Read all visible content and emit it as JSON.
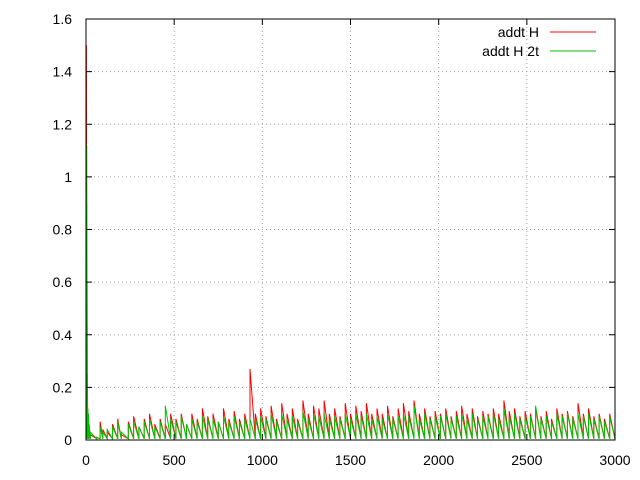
{
  "chart_data": {
    "type": "line",
    "title": "",
    "xlabel": "",
    "ylabel": "",
    "xlim": [
      0,
      3000
    ],
    "ylim": [
      0,
      1.6
    ],
    "grid": true,
    "legend_position": "top-right",
    "x_ticks": [
      0,
      500,
      1000,
      1500,
      2000,
      2500,
      3000
    ],
    "x_tick_labels": [
      "0",
      "500",
      "1000",
      "1500",
      "2000",
      "2500",
      "3000"
    ],
    "y_ticks": [
      0,
      0.2,
      0.4,
      0.6,
      0.8,
      1.0,
      1.2,
      1.4,
      1.6
    ],
    "y_tick_labels": [
      "0",
      "0.2",
      "0.4",
      "0.6",
      "0.8",
      "1",
      "1.2",
      "1.4",
      "1.6"
    ],
    "series": [
      {
        "name": "addt H",
        "color": "#ff0000",
        "points": [
          [
            0,
            0.02
          ],
          [
            2,
            1.5
          ],
          [
            4,
            1.12
          ],
          [
            6,
            0.6
          ],
          [
            8,
            0.25
          ],
          [
            10,
            0.12
          ],
          [
            14,
            0.07
          ],
          [
            18,
            0.04
          ],
          [
            25,
            0.02
          ],
          [
            60,
            0.01
          ],
          [
            80,
            0.07
          ],
          [
            95,
            0.04
          ],
          [
            120,
            0.03
          ],
          [
            150,
            0.06
          ],
          [
            180,
            0.08
          ],
          [
            200,
            0.02
          ],
          [
            240,
            0.07
          ],
          [
            270,
            0.09
          ],
          [
            300,
            0.05
          ],
          [
            330,
            0.08
          ],
          [
            360,
            0.1
          ],
          [
            390,
            0.06
          ],
          [
            420,
            0.08
          ],
          [
            450,
            0.06
          ],
          [
            480,
            0.1
          ],
          [
            510,
            0.08
          ],
          [
            540,
            0.1
          ],
          [
            570,
            0.06
          ],
          [
            600,
            0.1
          ],
          [
            630,
            0.08
          ],
          [
            660,
            0.12
          ],
          [
            690,
            0.09
          ],
          [
            720,
            0.1
          ],
          [
            750,
            0.07
          ],
          [
            780,
            0.12
          ],
          [
            810,
            0.08
          ],
          [
            840,
            0.11
          ],
          [
            870,
            0.08
          ],
          [
            900,
            0.1
          ],
          [
            930,
            0.27
          ],
          [
            960,
            0.1
          ],
          [
            990,
            0.12
          ],
          [
            1020,
            0.09
          ],
          [
            1050,
            0.13
          ],
          [
            1080,
            0.08
          ],
          [
            1110,
            0.14
          ],
          [
            1140,
            0.1
          ],
          [
            1170,
            0.12
          ],
          [
            1200,
            0.08
          ],
          [
            1230,
            0.15
          ],
          [
            1260,
            0.1
          ],
          [
            1290,
            0.13
          ],
          [
            1320,
            0.12
          ],
          [
            1350,
            0.15
          ],
          [
            1380,
            0.1
          ],
          [
            1410,
            0.12
          ],
          [
            1440,
            0.09
          ],
          [
            1470,
            0.14
          ],
          [
            1500,
            0.1
          ],
          [
            1530,
            0.13
          ],
          [
            1560,
            0.11
          ],
          [
            1590,
            0.14
          ],
          [
            1620,
            0.1
          ],
          [
            1650,
            0.12
          ],
          [
            1680,
            0.1
          ],
          [
            1710,
            0.13
          ],
          [
            1740,
            0.09
          ],
          [
            1770,
            0.12
          ],
          [
            1800,
            0.14
          ],
          [
            1830,
            0.11
          ],
          [
            1860,
            0.15
          ],
          [
            1890,
            0.1
          ],
          [
            1920,
            0.12
          ],
          [
            1950,
            0.09
          ],
          [
            1980,
            0.11
          ],
          [
            2010,
            0.1
          ],
          [
            2040,
            0.12
          ],
          [
            2070,
            0.09
          ],
          [
            2100,
            0.11
          ],
          [
            2130,
            0.13
          ],
          [
            2160,
            0.1
          ],
          [
            2190,
            0.12
          ],
          [
            2220,
            0.09
          ],
          [
            2250,
            0.11
          ],
          [
            2280,
            0.1
          ],
          [
            2310,
            0.12
          ],
          [
            2340,
            0.1
          ],
          [
            2370,
            0.15
          ],
          [
            2400,
            0.11
          ],
          [
            2430,
            0.12
          ],
          [
            2460,
            0.09
          ],
          [
            2490,
            0.11
          ],
          [
            2520,
            0.1
          ],
          [
            2550,
            0.12
          ],
          [
            2580,
            0.09
          ],
          [
            2610,
            0.11
          ],
          [
            2640,
            0.08
          ],
          [
            2670,
            0.12
          ],
          [
            2700,
            0.1
          ],
          [
            2730,
            0.11
          ],
          [
            2760,
            0.09
          ],
          [
            2790,
            0.14
          ],
          [
            2820,
            0.1
          ],
          [
            2850,
            0.12
          ],
          [
            2880,
            0.09
          ],
          [
            2910,
            0.1
          ],
          [
            2940,
            0.08
          ],
          [
            2970,
            0.1
          ],
          [
            3000,
            0.06
          ]
        ]
      },
      {
        "name": "addt H 2t",
        "color": "#00c000",
        "points": [
          [
            0,
            0.03
          ],
          [
            2,
            1.12
          ],
          [
            4,
            0.9
          ],
          [
            6,
            0.45
          ],
          [
            8,
            0.17
          ],
          [
            10,
            0.12
          ],
          [
            14,
            0.1
          ],
          [
            18,
            0.06
          ],
          [
            25,
            0.03
          ],
          [
            60,
            0.01
          ],
          [
            80,
            0.05
          ],
          [
            95,
            0.03
          ],
          [
            120,
            0.04
          ],
          [
            150,
            0.05
          ],
          [
            180,
            0.07
          ],
          [
            200,
            0.03
          ],
          [
            240,
            0.06
          ],
          [
            270,
            0.07
          ],
          [
            300,
            0.05
          ],
          [
            330,
            0.07
          ],
          [
            360,
            0.08
          ],
          [
            390,
            0.05
          ],
          [
            420,
            0.07
          ],
          [
            450,
            0.13
          ],
          [
            480,
            0.08
          ],
          [
            510,
            0.07
          ],
          [
            540,
            0.09
          ],
          [
            570,
            0.06
          ],
          [
            600,
            0.08
          ],
          [
            630,
            0.07
          ],
          [
            660,
            0.09
          ],
          [
            690,
            0.08
          ],
          [
            720,
            0.08
          ],
          [
            750,
            0.07
          ],
          [
            780,
            0.09
          ],
          [
            810,
            0.07
          ],
          [
            840,
            0.09
          ],
          [
            870,
            0.07
          ],
          [
            900,
            0.08
          ],
          [
            930,
            0.08
          ],
          [
            960,
            0.08
          ],
          [
            990,
            0.09
          ],
          [
            1020,
            0.08
          ],
          [
            1050,
            0.1
          ],
          [
            1080,
            0.07
          ],
          [
            1110,
            0.1
          ],
          [
            1140,
            0.08
          ],
          [
            1170,
            0.09
          ],
          [
            1200,
            0.07
          ],
          [
            1230,
            0.11
          ],
          [
            1260,
            0.08
          ],
          [
            1290,
            0.1
          ],
          [
            1320,
            0.09
          ],
          [
            1350,
            0.1
          ],
          [
            1380,
            0.08
          ],
          [
            1410,
            0.09
          ],
          [
            1440,
            0.08
          ],
          [
            1470,
            0.1
          ],
          [
            1500,
            0.08
          ],
          [
            1530,
            0.1
          ],
          [
            1560,
            0.09
          ],
          [
            1590,
            0.1
          ],
          [
            1620,
            0.08
          ],
          [
            1650,
            0.09
          ],
          [
            1680,
            0.08
          ],
          [
            1710,
            0.1
          ],
          [
            1740,
            0.08
          ],
          [
            1770,
            0.09
          ],
          [
            1800,
            0.1
          ],
          [
            1830,
            0.09
          ],
          [
            1860,
            0.13
          ],
          [
            1890,
            0.08
          ],
          [
            1920,
            0.1
          ],
          [
            1950,
            0.08
          ],
          [
            1980,
            0.09
          ],
          [
            2010,
            0.09
          ],
          [
            2040,
            0.1
          ],
          [
            2070,
            0.08
          ],
          [
            2100,
            0.09
          ],
          [
            2130,
            0.1
          ],
          [
            2160,
            0.08
          ],
          [
            2190,
            0.1
          ],
          [
            2220,
            0.08
          ],
          [
            2250,
            0.09
          ],
          [
            2280,
            0.09
          ],
          [
            2310,
            0.1
          ],
          [
            2340,
            0.08
          ],
          [
            2370,
            0.12
          ],
          [
            2400,
            0.09
          ],
          [
            2430,
            0.1
          ],
          [
            2460,
            0.08
          ],
          [
            2490,
            0.09
          ],
          [
            2520,
            0.09
          ],
          [
            2550,
            0.13
          ],
          [
            2580,
            0.08
          ],
          [
            2610,
            0.09
          ],
          [
            2640,
            0.07
          ],
          [
            2670,
            0.1
          ],
          [
            2700,
            0.09
          ],
          [
            2730,
            0.1
          ],
          [
            2760,
            0.08
          ],
          [
            2790,
            0.1
          ],
          [
            2820,
            0.09
          ],
          [
            2850,
            0.1
          ],
          [
            2880,
            0.08
          ],
          [
            2910,
            0.09
          ],
          [
            2940,
            0.07
          ],
          [
            2970,
            0.09
          ],
          [
            3000,
            0.05
          ]
        ]
      }
    ]
  }
}
